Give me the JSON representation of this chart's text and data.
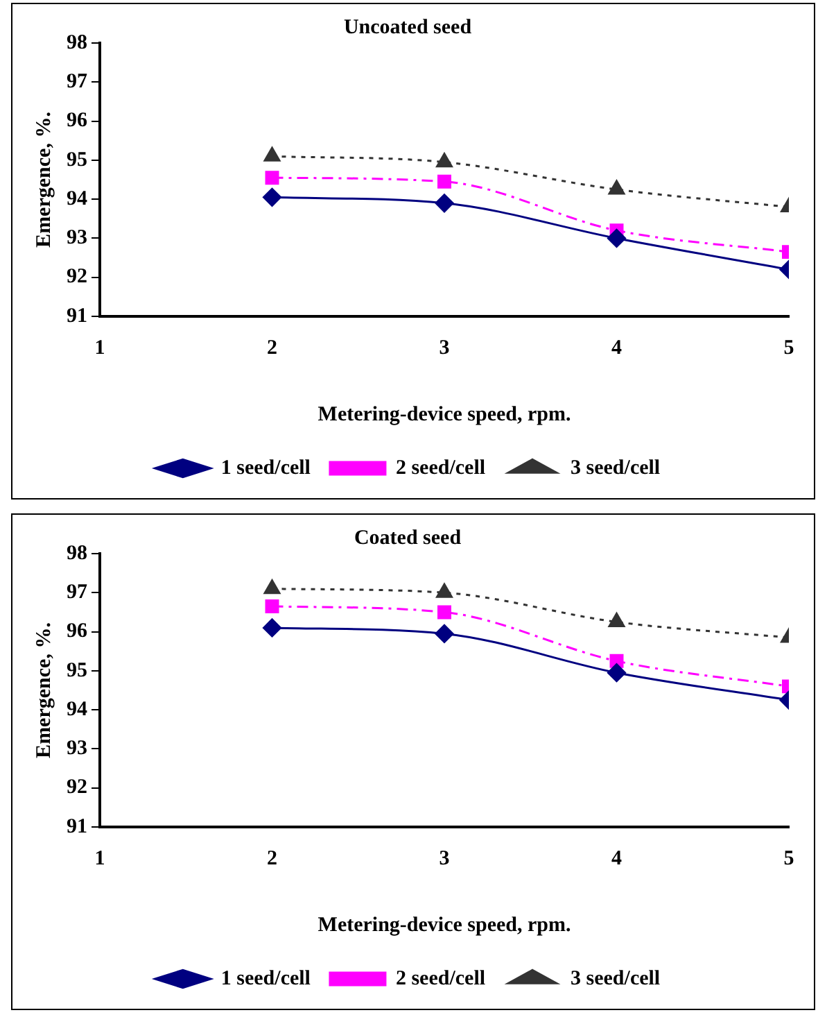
{
  "chart_data": [
    {
      "type": "line",
      "title": "Uncoated seed",
      "xlabel": "Metering-device speed, rpm.",
      "ylabel": "Emergence, %.",
      "x": [
        2,
        3,
        4,
        5
      ],
      "xlim": [
        1,
        5
      ],
      "xticks": [
        1,
        2,
        3,
        4,
        5
      ],
      "ylim": [
        91,
        98
      ],
      "yticks": [
        91,
        92,
        93,
        94,
        95,
        96,
        97,
        98
      ],
      "grid": false,
      "legend": "bottom",
      "series": [
        {
          "name": "1 seed/cell",
          "color": "#000080",
          "marker": "diamond",
          "line_style": "solid",
          "values": [
            94.05,
            93.9,
            93.0,
            92.2
          ]
        },
        {
          "name": "2 seed/cell",
          "color": "#ff00ff",
          "marker": "square",
          "line_style": "dashed",
          "values": [
            94.55,
            94.45,
            93.2,
            92.65
          ]
        },
        {
          "name": "3 seed/cell",
          "color": "#333333",
          "marker": "triangle",
          "line_style": "dotted",
          "values": [
            95.1,
            94.95,
            94.25,
            93.8
          ]
        }
      ]
    },
    {
      "type": "line",
      "title": "Coated seed",
      "xlabel": "Metering-device speed, rpm.",
      "ylabel": "Emergence, %.",
      "x": [
        2,
        3,
        4,
        5
      ],
      "xlim": [
        1,
        5
      ],
      "xticks": [
        1,
        2,
        3,
        4,
        5
      ],
      "ylim": [
        91,
        98
      ],
      "yticks": [
        91,
        92,
        93,
        94,
        95,
        96,
        97,
        98
      ],
      "grid": false,
      "legend": "bottom",
      "series": [
        {
          "name": "1 seed/cell",
          "color": "#000080",
          "marker": "diamond",
          "line_style": "solid",
          "values": [
            96.1,
            95.95,
            94.95,
            94.25
          ]
        },
        {
          "name": "2 seed/cell",
          "color": "#ff00ff",
          "marker": "square",
          "line_style": "dashed",
          "values": [
            96.65,
            96.5,
            95.25,
            94.6
          ]
        },
        {
          "name": "3 seed/cell",
          "color": "#333333",
          "marker": "triangle",
          "line_style": "dotted",
          "values": [
            97.1,
            97.0,
            96.25,
            95.85
          ]
        }
      ]
    }
  ]
}
